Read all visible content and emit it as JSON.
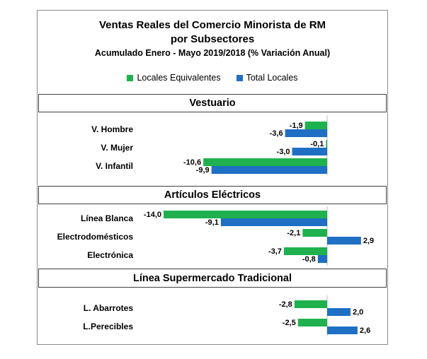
{
  "chart_data": {
    "type": "bar",
    "orientation": "horizontal",
    "title": "Ventas Reales del Comercio Minorista de RM",
    "title_line2": "por Subsectores",
    "subtitle": "Acumulado Enero - Mayo 2019/2018 (% Variación Anual)",
    "legend_position": "top",
    "series": [
      {
        "name": "Locales Equivalentes",
        "color": "#1fb14e"
      },
      {
        "name": "Total Locales",
        "color": "#1f6fc4"
      }
    ],
    "sections": [
      {
        "title": "Vestuario",
        "categories": [
          "V. Hombre",
          "V. Mujer",
          "V. Infantil"
        ],
        "values": [
          [
            -1.9,
            -3.6
          ],
          [
            -0.1,
            -3.0
          ],
          [
            -10.6,
            -9.9
          ]
        ],
        "labels": [
          [
            "-1,9",
            "-3,6"
          ],
          [
            "-0,1",
            "-3,0"
          ],
          [
            "-10,6",
            "-9,9"
          ]
        ]
      },
      {
        "title": "Artículos Eléctricos",
        "categories": [
          "Línea Blanca",
          "Electrodomésticos",
          "Electrónica"
        ],
        "values": [
          [
            -14.0,
            -9.1
          ],
          [
            -2.1,
            2.9
          ],
          [
            -3.7,
            -0.8
          ]
        ],
        "labels": [
          [
            "-14,0",
            "-9,1"
          ],
          [
            "-2,1",
            "2,9"
          ],
          [
            "-3,7",
            "-0,8"
          ]
        ]
      },
      {
        "title": "Línea  Supermercado Tradicional",
        "categories": [
          "L. Abarrotes",
          "L.Perecibles"
        ],
        "values": [
          [
            -2.8,
            2.0
          ],
          [
            -2.5,
            2.6
          ]
        ],
        "labels": [
          [
            "-2,8",
            "2,0"
          ],
          [
            "-2,5",
            "2,6"
          ]
        ]
      }
    ]
  }
}
